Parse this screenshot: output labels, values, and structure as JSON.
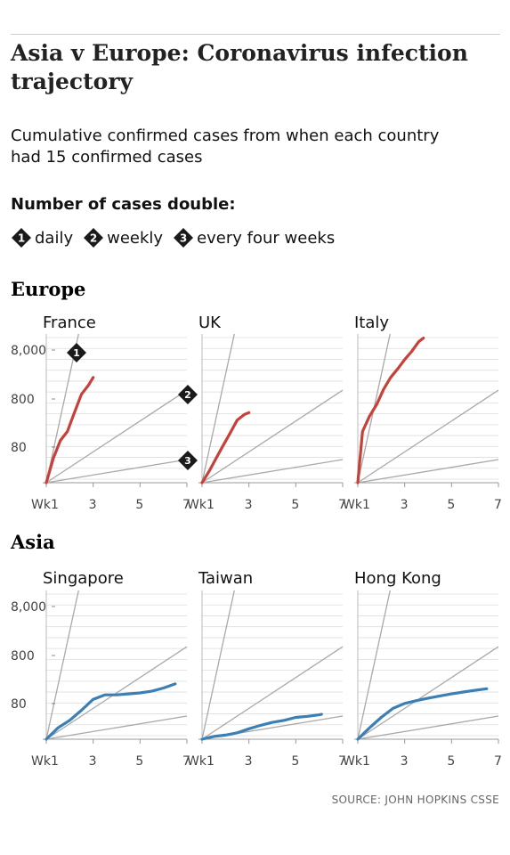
{
  "title": "Asia v Europe: Coronavirus infection trajectory",
  "subtitle": "Cumulative confirmed cases from when each country had 15 confirmed cases",
  "legend": {
    "title": "Number of cases double:",
    "items": [
      {
        "num": "1",
        "label": "daily"
      },
      {
        "num": "2",
        "label": "weekly"
      },
      {
        "num": "3",
        "label": "every four weeks"
      }
    ]
  },
  "source": "SOURCE: JOHN HOPKINS CSSE",
  "colors": {
    "europe": "#c8403a",
    "asia": "#3b7fb5",
    "reference": "#a9a9a9",
    "grid": "#dddddd",
    "marker": "#1a1a1a"
  },
  "chart_data": {
    "type": "line",
    "y_scale": "log",
    "ylim": [
      15,
      12000
    ],
    "xlim": [
      1,
      7
    ],
    "x_ticks": [
      "Wk1",
      "3",
      "5",
      "7"
    ],
    "y_ticks": [
      "8,000",
      "800",
      "80"
    ],
    "reference_lines": [
      {
        "num": "1",
        "doubling": "daily"
      },
      {
        "num": "2",
        "doubling": "weekly"
      },
      {
        "num": "3",
        "doubling": "every four weeks"
      }
    ],
    "groups": [
      {
        "name": "Europe",
        "panels": [
          {
            "title": "France",
            "x": [
              1,
              1.3,
              1.6,
              1.9,
              2.2,
              2.5,
              2.8,
              3.0
            ],
            "y": [
              15,
              45,
              100,
              150,
              350,
              800,
              1200,
              1700
            ]
          },
          {
            "title": "UK",
            "x": [
              1,
              1.3,
              1.6,
              1.9,
              2.2,
              2.5,
              2.8,
              3.0
            ],
            "y": [
              15,
              25,
              45,
              80,
              140,
              250,
              320,
              350
            ]
          },
          {
            "title": "Italy",
            "x": [
              1,
              1.2,
              1.5,
              1.8,
              2.1,
              2.4,
              2.7,
              3.0,
              3.3,
              3.6,
              3.8
            ],
            "y": [
              15,
              150,
              300,
              500,
              1000,
              1700,
              2500,
              3800,
              5500,
              8500,
              10000
            ]
          }
        ]
      },
      {
        "name": "Asia",
        "panels": [
          {
            "title": "Singapore",
            "x": [
              1,
              1.5,
              2,
              2.5,
              3,
              3.5,
              4,
              4.5,
              5,
              5.5,
              6,
              6.5
            ],
            "y": [
              15,
              25,
              35,
              55,
              90,
              110,
              110,
              115,
              120,
              130,
              150,
              180
            ]
          },
          {
            "title": "Taiwan",
            "x": [
              1,
              1.5,
              2,
              2.5,
              3,
              3.5,
              4,
              4.5,
              5,
              5.5,
              6,
              6.1
            ],
            "y": [
              15,
              17,
              18,
              20,
              24,
              28,
              32,
              35,
              40,
              42,
              45,
              46
            ]
          },
          {
            "title": "Hong Kong",
            "x": [
              1,
              1.5,
              2,
              2.5,
              3,
              3.5,
              4,
              4.5,
              5,
              5.5,
              6,
              6.5
            ],
            "y": [
              15,
              25,
              40,
              60,
              75,
              85,
              95,
              105,
              115,
              125,
              135,
              145
            ]
          }
        ]
      }
    ]
  }
}
